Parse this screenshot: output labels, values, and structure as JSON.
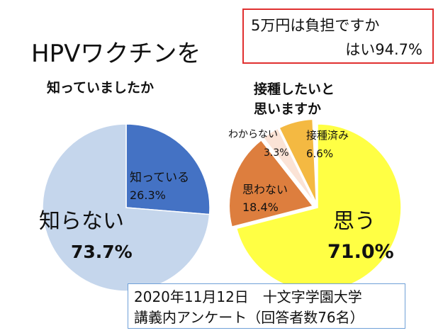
{
  "title": "HPVワクチンを",
  "callout": {
    "line1": "5万円は負担ですか",
    "line2": "はい94.7%"
  },
  "footer": {
    "line1": "2020年11月12日　十文字学園大学",
    "line2": "講義内アンケート（回答者数76名）"
  },
  "colors": {
    "knew": "#4472c4",
    "didnt_know": "#c5d6ec",
    "want": "#ffff44",
    "dont_want": "#dd7e3e",
    "dont_know": "#fbe3d6",
    "vaccinated": "#f4b942",
    "callout_border": "#e03030",
    "footer_border": "#6fa0d8"
  },
  "chart_data": [
    {
      "type": "pie",
      "title": "知っていましたか",
      "categories": [
        "知っている",
        "知らない"
      ],
      "values": [
        26.3,
        73.7
      ],
      "labels": [
        "26.3%",
        "73.7%"
      ]
    },
    {
      "type": "pie",
      "title": "接種したいと思いますか",
      "categories": [
        "思う",
        "思わない",
        "わからない",
        "接種済み"
      ],
      "values": [
        71.0,
        18.4,
        3.3,
        6.6
      ],
      "labels": [
        "71.0%",
        "18.4%",
        "3.3%",
        "6.6%"
      ]
    }
  ]
}
